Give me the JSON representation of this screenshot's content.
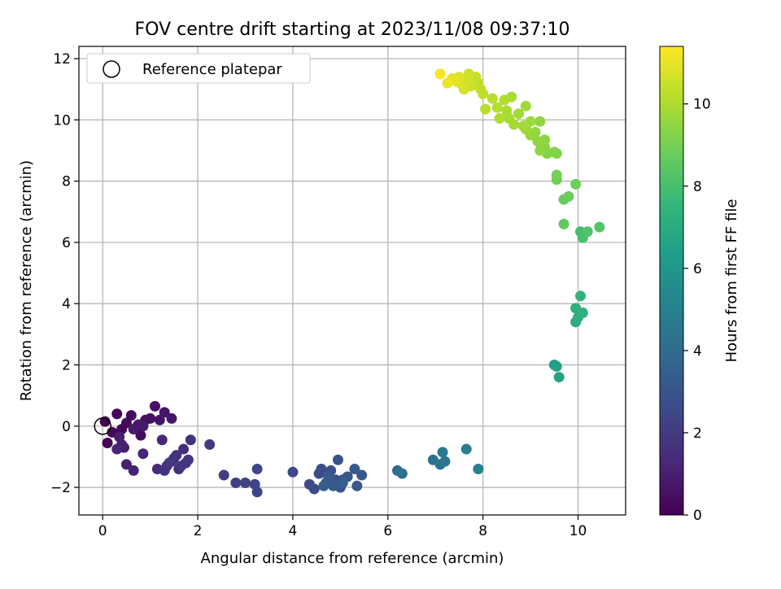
{
  "chart_data": {
    "type": "scatter",
    "title": "FOV centre drift starting at 2023/11/08 09:37:10",
    "xlabel": "Angular distance from reference (arcmin)",
    "ylabel": "Rotation from reference (arcmin)",
    "xlim": [
      -0.5,
      11.0
    ],
    "ylim": [
      -2.9,
      12.4
    ],
    "xticks": [
      0,
      2,
      4,
      6,
      8,
      10
    ],
    "yticks": [
      -2,
      0,
      2,
      4,
      6,
      8,
      10,
      12
    ],
    "grid": true,
    "legend": {
      "placement": "top-left",
      "label": "Reference platepar"
    },
    "reference_point": {
      "x": 0,
      "y": 0
    },
    "colorbar": {
      "label": "Hours from first FF file",
      "range": [
        0,
        11.4
      ],
      "ticks": [
        0,
        2,
        4,
        6,
        8,
        10
      ],
      "colormap": "viridis"
    },
    "colormap_stops": [
      "#440154",
      "#482878",
      "#3e4989",
      "#31688e",
      "#26828e",
      "#1f9e89",
      "#35b779",
      "#6ece58",
      "#b5de2b",
      "#fde725"
    ],
    "series": [
      {
        "points": [
          [
            0.05,
            0.15,
            0.0
          ],
          [
            0.1,
            -0.55,
            0.05
          ],
          [
            0.3,
            0.4,
            0.1
          ],
          [
            0.2,
            -0.2,
            0.15
          ],
          [
            0.4,
            -0.1,
            0.2
          ],
          [
            0.5,
            0.1,
            0.25
          ],
          [
            0.6,
            0.35,
            0.3
          ],
          [
            0.7,
            -0.05,
            0.35
          ],
          [
            0.8,
            -0.3,
            0.4
          ],
          [
            0.9,
            0.2,
            0.45
          ],
          [
            1.0,
            0.25,
            0.5
          ],
          [
            1.1,
            0.65,
            0.55
          ],
          [
            1.2,
            0.2,
            0.6
          ],
          [
            1.3,
            0.45,
            0.65
          ],
          [
            1.45,
            0.25,
            0.7
          ],
          [
            0.75,
            0.05,
            0.75
          ],
          [
            0.65,
            -0.1,
            0.8
          ],
          [
            0.85,
            0.0,
            0.85
          ],
          [
            0.35,
            -0.35,
            0.9
          ],
          [
            0.45,
            -0.7,
            0.95
          ],
          [
            0.4,
            -0.6,
            1.0
          ],
          [
            0.5,
            -1.25,
            1.05
          ],
          [
            0.65,
            -1.45,
            1.1
          ],
          [
            0.85,
            -0.9,
            1.15
          ],
          [
            0.3,
            -0.75,
            1.2
          ],
          [
            1.25,
            -0.45,
            1.25
          ],
          [
            1.15,
            -1.4,
            1.3
          ],
          [
            1.35,
            -1.3,
            1.35
          ],
          [
            1.5,
            -1.05,
            1.4
          ],
          [
            1.6,
            -1.4,
            1.45
          ],
          [
            1.7,
            -0.75,
            1.5
          ],
          [
            1.75,
            -1.2,
            1.55
          ],
          [
            1.85,
            -0.45,
            1.6
          ],
          [
            1.3,
            -1.45,
            1.65
          ],
          [
            1.55,
            -0.95,
            1.7
          ],
          [
            1.45,
            -1.15,
            1.75
          ],
          [
            1.65,
            -1.3,
            1.8
          ],
          [
            1.8,
            -1.1,
            1.85
          ],
          [
            1.4,
            -1.2,
            1.9
          ],
          [
            2.25,
            -0.6,
            1.95
          ],
          [
            2.55,
            -1.6,
            2.05
          ],
          [
            2.8,
            -1.85,
            2.15
          ],
          [
            3.0,
            -1.85,
            2.25
          ],
          [
            3.2,
            -1.9,
            2.3
          ],
          [
            3.25,
            -2.15,
            2.35
          ],
          [
            3.25,
            -1.4,
            2.4
          ],
          [
            4.0,
            -1.5,
            2.5
          ],
          [
            4.35,
            -1.9,
            2.55
          ],
          [
            4.45,
            -2.05,
            2.6
          ],
          [
            4.55,
            -1.55,
            2.65
          ],
          [
            4.6,
            -1.4,
            2.7
          ],
          [
            4.7,
            -1.85,
            2.75
          ],
          [
            4.8,
            -1.45,
            2.8
          ],
          [
            4.9,
            -1.75,
            2.85
          ],
          [
            4.95,
            -1.1,
            2.9
          ],
          [
            5.0,
            -2.0,
            2.95
          ],
          [
            5.05,
            -1.75,
            3.0
          ],
          [
            5.15,
            -1.65,
            3.05
          ],
          [
            5.3,
            -1.4,
            3.1
          ],
          [
            5.35,
            -1.95,
            3.15
          ],
          [
            5.45,
            -1.6,
            3.2
          ],
          [
            4.75,
            -1.65,
            3.25
          ],
          [
            4.85,
            -1.95,
            3.3
          ],
          [
            4.65,
            -1.95,
            3.35
          ],
          [
            5.05,
            -1.85,
            3.4
          ],
          [
            6.2,
            -1.45,
            4.0
          ],
          [
            6.3,
            -1.55,
            4.1
          ],
          [
            6.95,
            -1.1,
            4.3
          ],
          [
            7.1,
            -1.25,
            4.4
          ],
          [
            7.2,
            -1.15,
            4.5
          ],
          [
            7.15,
            -0.85,
            4.6
          ],
          [
            7.65,
            -0.75,
            4.8
          ],
          [
            7.9,
            -1.4,
            5.0
          ],
          [
            9.5,
            2.0,
            6.4
          ],
          [
            9.55,
            1.95,
            6.5
          ],
          [
            9.6,
            1.6,
            6.6
          ],
          [
            9.95,
            3.4,
            7.1
          ],
          [
            10.0,
            3.55,
            7.2
          ],
          [
            9.95,
            3.85,
            7.25
          ],
          [
            10.1,
            3.7,
            7.3
          ],
          [
            10.05,
            4.25,
            7.35
          ],
          [
            10.05,
            6.35,
            8.0
          ],
          [
            10.1,
            6.15,
            8.1
          ],
          [
            10.2,
            6.35,
            8.2
          ],
          [
            10.45,
            6.5,
            8.3
          ],
          [
            9.7,
            6.6,
            8.6
          ],
          [
            9.7,
            7.4,
            8.7
          ],
          [
            9.8,
            7.5,
            8.8
          ],
          [
            9.95,
            7.9,
            8.85
          ],
          [
            9.55,
            8.05,
            8.9
          ],
          [
            9.55,
            8.2,
            9.0
          ],
          [
            9.55,
            8.9,
            9.2
          ],
          [
            9.5,
            8.95,
            9.25
          ],
          [
            9.35,
            8.9,
            9.3
          ],
          [
            9.3,
            9.1,
            9.35
          ],
          [
            9.3,
            9.35,
            9.4
          ],
          [
            9.2,
            9.0,
            9.45
          ],
          [
            9.15,
            9.3,
            9.5
          ],
          [
            9.1,
            9.6,
            9.55
          ],
          [
            9.0,
            9.5,
            9.6
          ],
          [
            8.9,
            9.7,
            9.65
          ],
          [
            9.0,
            9.95,
            9.7
          ],
          [
            8.85,
            9.8,
            9.75
          ],
          [
            8.75,
            10.2,
            9.8
          ],
          [
            8.65,
            9.85,
            9.85
          ],
          [
            8.55,
            10.05,
            9.9
          ],
          [
            8.5,
            10.3,
            9.95
          ],
          [
            8.35,
            10.05,
            10.0
          ],
          [
            8.45,
            10.65,
            10.05
          ],
          [
            8.3,
            10.4,
            10.1
          ],
          [
            8.2,
            10.7,
            10.15
          ],
          [
            8.05,
            10.35,
            10.2
          ],
          [
            8.0,
            10.85,
            10.25
          ],
          [
            7.9,
            11.2,
            10.3
          ],
          [
            7.85,
            11.4,
            10.4
          ],
          [
            7.75,
            11.1,
            10.5
          ],
          [
            7.7,
            11.5,
            10.55
          ],
          [
            7.65,
            11.3,
            10.6
          ],
          [
            7.6,
            11.0,
            10.7
          ],
          [
            7.55,
            11.15,
            10.75
          ],
          [
            7.5,
            11.4,
            10.8
          ],
          [
            7.45,
            11.25,
            10.9
          ],
          [
            7.35,
            11.35,
            11.0
          ],
          [
            7.25,
            11.2,
            11.1
          ],
          [
            7.1,
            11.5,
            11.3
          ],
          [
            8.9,
            10.45,
            9.75
          ],
          [
            9.2,
            9.95,
            9.5
          ],
          [
            8.6,
            10.75,
            9.9
          ],
          [
            7.95,
            11.0,
            10.3
          ]
        ]
      }
    ]
  }
}
